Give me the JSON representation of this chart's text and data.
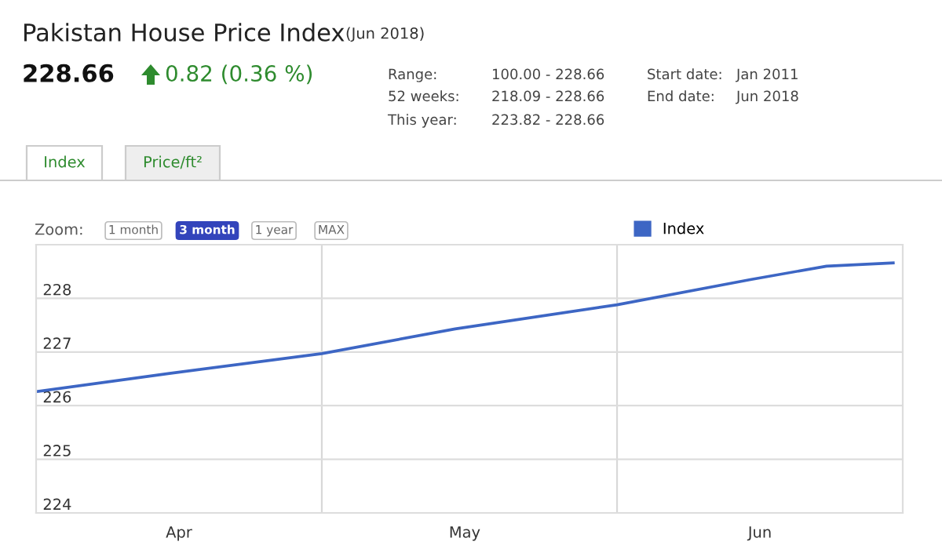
{
  "chart_data": {
    "type": "line",
    "title": "Pakistan House Price Index",
    "subtitle": "(Jun 2018)",
    "annotations": [
      "228.66",
      "0.82 (0.36 %)",
      "Range:",
      "100.00 - 228.66",
      "52 weeks:",
      "218.09 - 228.66",
      "This year:",
      "223.82 - 228.66",
      "Start date:",
      "Jan 2011",
      "End date:",
      "Jun 2018",
      "Index",
      "Price/ft²",
      "Zoom:",
      "1 month",
      "3 month",
      "1 year",
      "MAX"
    ],
    "x": [
      "2018-04-01",
      "2018-04-15",
      "2018-05-01",
      "2018-05-15",
      "2018-06-01",
      "2018-06-15",
      "2018-06-23",
      "2018-06-30"
    ],
    "series": [
      {
        "name": "Index",
        "color": "#3d66c4",
        "values": [
          226.26,
          226.6,
          226.97,
          227.43,
          227.88,
          228.35,
          228.6,
          228.66
        ]
      }
    ],
    "xlim": [
      "2018-04-01",
      "2018-07-01"
    ],
    "xticks": [
      {
        "value": "2018-04-16",
        "label": "Apr"
      },
      {
        "value": "2018-05-16",
        "label": "May"
      },
      {
        "value": "2018-06-16",
        "label": "Jun"
      }
    ],
    "ylim": [
      224,
      229
    ],
    "yticks": [
      224,
      225,
      226,
      227,
      228
    ],
    "ref_lines": [
      {
        "axis": "x",
        "value": "2018-05-01",
        "label": null
      },
      {
        "axis": "x",
        "value": "2018-06-01",
        "label": null
      }
    ],
    "grid": "y",
    "legend": "top right",
    "marker": "none",
    "line_style": "solid"
  }
}
